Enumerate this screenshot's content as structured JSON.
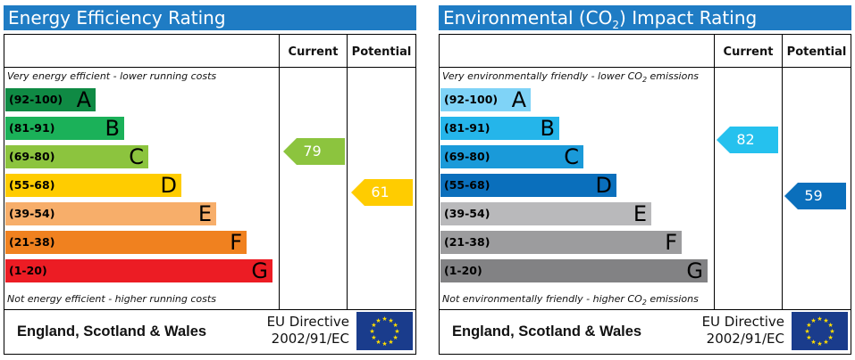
{
  "panels": [
    {
      "title": "Energy Efficiency Rating",
      "headers": {
        "current": "Current",
        "potential": "Potential"
      },
      "top_caption": "Very energy efficient - lower running costs",
      "bottom_caption": "Not energy efficient - higher running costs",
      "bands": [
        {
          "range": "(92-100)",
          "letter": "A",
          "color": "#0f8a44",
          "range_color": "#000000"
        },
        {
          "range": "(81-91)",
          "letter": "B",
          "color": "#1bb159",
          "range_color": "#000000"
        },
        {
          "range": "(69-80)",
          "letter": "C",
          "color": "#8cc43e",
          "range_color": "#000000"
        },
        {
          "range": "(55-68)",
          "letter": "D",
          "color": "#ffcc00",
          "range_color": "#000000"
        },
        {
          "range": "(39-54)",
          "letter": "E",
          "color": "#f7ae6a",
          "range_color": "#000000"
        },
        {
          "range": "(21-38)",
          "letter": "F",
          "color": "#f0811f",
          "range_color": "#000000"
        },
        {
          "range": "(1-20)",
          "letter": "G",
          "color": "#ec1c24",
          "range_color": "#000000"
        }
      ],
      "current": {
        "value": "79",
        "color": "#8cc43e"
      },
      "potential": {
        "value": "61",
        "color": "#ffcc00"
      },
      "footer_title": "England, Scotland & Wales",
      "directive_line1": "EU Directive",
      "directive_line2": "2002/91/EC"
    },
    {
      "title_prefix": "Environmental (CO",
      "title_sub": "2",
      "title_suffix": ") Impact Rating",
      "headers": {
        "current": "Current",
        "potential": "Potential"
      },
      "top_caption": "Very environmentally friendly - lower CO",
      "top_caption_sub": "2",
      "top_caption_suffix": " emissions",
      "bottom_caption": "Not environmentally friendly - higher CO",
      "bottom_caption_sub": "2",
      "bottom_caption_suffix": " emissions",
      "bands": [
        {
          "range": "(92-100)",
          "letter": "A",
          "color": "#7fd3f7",
          "range_color": "#000000"
        },
        {
          "range": "(81-91)",
          "letter": "B",
          "color": "#25b5ea",
          "range_color": "#000000"
        },
        {
          "range": "(69-80)",
          "letter": "C",
          "color": "#1a9ad9",
          "range_color": "#000000"
        },
        {
          "range": "(55-68)",
          "letter": "D",
          "color": "#0a6fbc",
          "range_color": "#000000"
        },
        {
          "range": "(39-54)",
          "letter": "E",
          "color": "#b9b9bb",
          "range_color": "#000000"
        },
        {
          "range": "(21-38)",
          "letter": "F",
          "color": "#9c9c9e",
          "range_color": "#000000"
        },
        {
          "range": "(1-20)",
          "letter": "G",
          "color": "#828284",
          "range_color": "#000000"
        }
      ],
      "current": {
        "value": "82",
        "color": "#25c1ee"
      },
      "potential": {
        "value": "59",
        "color": "#0a6fbc"
      },
      "footer_title": "England, Scotland & Wales",
      "directive_line1": "EU Directive",
      "directive_line2": "2002/91/EC"
    }
  ]
}
